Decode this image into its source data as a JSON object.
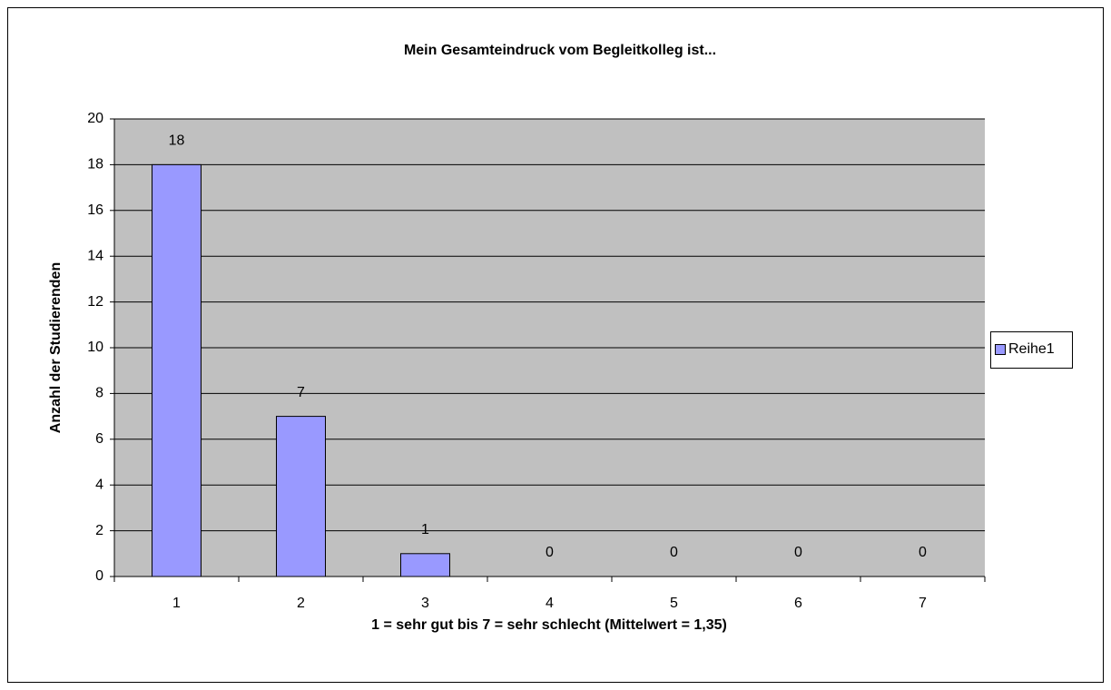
{
  "chart_data": {
    "type": "bar",
    "title": "Mein Gesamteindruck vom Begleitkolleg ist...",
    "x_label": "1 = sehr gut bis 7 = sehr schlecht (Mittelwert = 1,35)",
    "y_label": "Anzahl der Studierenden",
    "categories": [
      "1",
      "2",
      "3",
      "4",
      "5",
      "6",
      "7"
    ],
    "series": [
      {
        "name": "Reihe1",
        "color": "#9999ff",
        "values": [
          18,
          7,
          1,
          0,
          0,
          0,
          0
        ]
      }
    ],
    "ylim": [
      0,
      20
    ],
    "yticks": [
      0,
      2,
      4,
      6,
      8,
      10,
      12,
      14,
      16,
      18,
      20
    ],
    "grid": true,
    "legend": "right"
  }
}
